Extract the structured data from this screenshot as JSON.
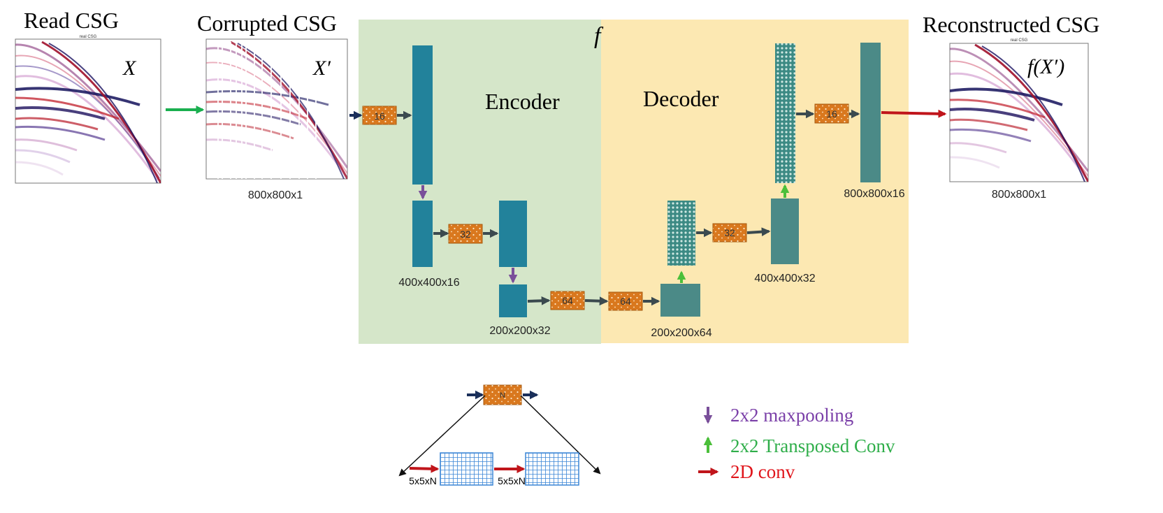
{
  "titles": {
    "real": "Read CSG",
    "corrupted": "Corrupted CSG",
    "reconstructed": "Reconstructed CSG"
  },
  "panels": {
    "real": {
      "small_title": "real CSG",
      "symbol": "X"
    },
    "corrupted": {
      "symbol": "X′"
    },
    "reconstructed": {
      "small_title": "real CSG",
      "symbol": "f(X′)"
    }
  },
  "network": {
    "function_symbol": "f",
    "encoder_label": "Encoder",
    "decoder_label": "Decoder"
  },
  "blocks": {
    "conv_16_a": "16",
    "conv_32_a": "32",
    "conv_64_a": "64",
    "conv_64_b": "64",
    "conv_32_b": "32",
    "conv_16_b": "16"
  },
  "dims": {
    "input": "800x800x1",
    "enc_400": "400x400x16",
    "enc_200": "200x200x32",
    "dec_200": "200x200x64",
    "dec_400": "400x400x32",
    "dec_800": "800x800x16",
    "output": "800x800x1"
  },
  "detail": {
    "block_label": "N",
    "conv_label_1": "5x5xN",
    "conv_label_2": "5x5xN"
  },
  "legend": {
    "maxpool": "2x2 maxpooling",
    "transposed": "2x2 Transposed Conv",
    "conv2d": "2D conv"
  },
  "colors": {
    "encoder_bg": "#d5e6c9",
    "decoder_bg": "#fce8b2",
    "encoder_block": "#22829b",
    "decoder_block": "#4b8a87",
    "orange_block": "#d9781e",
    "maxpool_arrow": "#7a4f9a",
    "transposed_arrow": "#4bbf3a",
    "conv_arrow": "#c0151b",
    "green_arrow": "#1aaf4f",
    "grid_blue": "#3b86d6"
  }
}
